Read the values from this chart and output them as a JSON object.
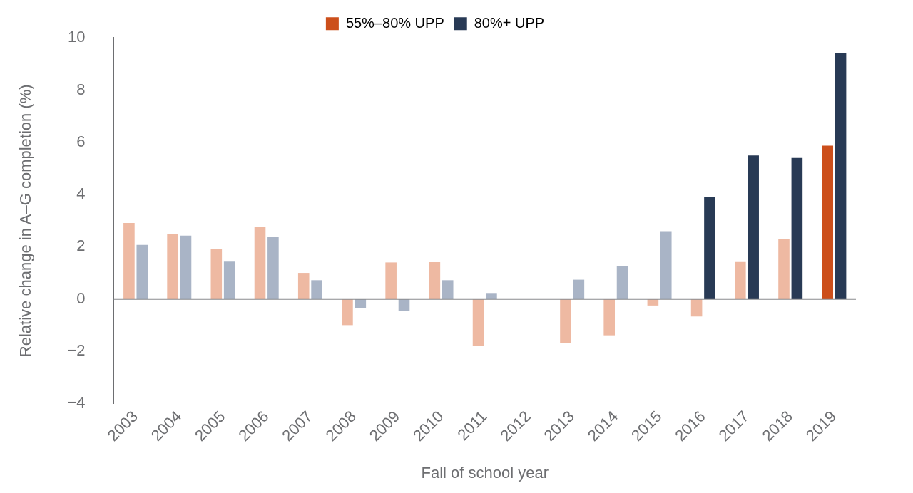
{
  "chart_data": {
    "type": "bar",
    "xlabel": "Fall of school year",
    "ylabel": "Relative change in A–G completion (%)",
    "categories": [
      "2003",
      "2004",
      "2005",
      "2006",
      "2007",
      "2008",
      "2009",
      "2010",
      "2011",
      "2012",
      "2013",
      "2014",
      "2015",
      "2016",
      "2017",
      "2018",
      "2019"
    ],
    "series": [
      {
        "name": "55%–80% UPP",
        "color": "#cc4f1b",
        "values": [
          2.91,
          2.48,
          1.9,
          2.77,
          1.0,
          -1.0,
          1.4,
          1.41,
          -1.78,
          null,
          -1.69,
          -1.39,
          -0.25,
          -0.67,
          1.42,
          2.29,
          5.87
        ],
        "colors": [
          "#eeb9a2",
          "#eeb9a2",
          "#eeb9a2",
          "#eeb9a2",
          "#eeb9a2",
          "#eeb9a2",
          "#eeb9a2",
          "#eeb9a2",
          "#eeb9a2",
          "#eeb9a2",
          "#eeb9a2",
          "#eeb9a2",
          "#eeb9a2",
          "#eeb9a2",
          "#eeb9a2",
          "#eeb9a2",
          "#cc4f1b"
        ]
      },
      {
        "name": "80%+ UPP",
        "color": "#283a55",
        "values": [
          2.07,
          2.43,
          1.43,
          2.39,
          0.72,
          -0.35,
          -0.47,
          0.72,
          0.23,
          null,
          0.74,
          1.27,
          2.6,
          3.91,
          5.5,
          5.4,
          9.42
        ],
        "colors": [
          "#a9b4c6",
          "#a9b4c6",
          "#a9b4c6",
          "#a9b4c6",
          "#a9b4c6",
          "#a9b4c6",
          "#a9b4c6",
          "#a9b4c6",
          "#a9b4c6",
          "#a9b4c6",
          "#a9b4c6",
          "#a9b4c6",
          "#a9b4c6",
          "#283a55",
          "#283a55",
          "#283a55",
          "#283a55"
        ]
      }
    ],
    "ylim": [
      -4,
      10
    ],
    "yticks": [
      {
        "value": -4,
        "label": "−4"
      },
      {
        "value": -2,
        "label": "−2"
      },
      0,
      2,
      4,
      6,
      8,
      10
    ],
    "grid": false,
    "ref_lines": [
      {
        "axis": "y",
        "value": 0,
        "color": "#8a8b8e"
      }
    ],
    "legend": "top"
  }
}
